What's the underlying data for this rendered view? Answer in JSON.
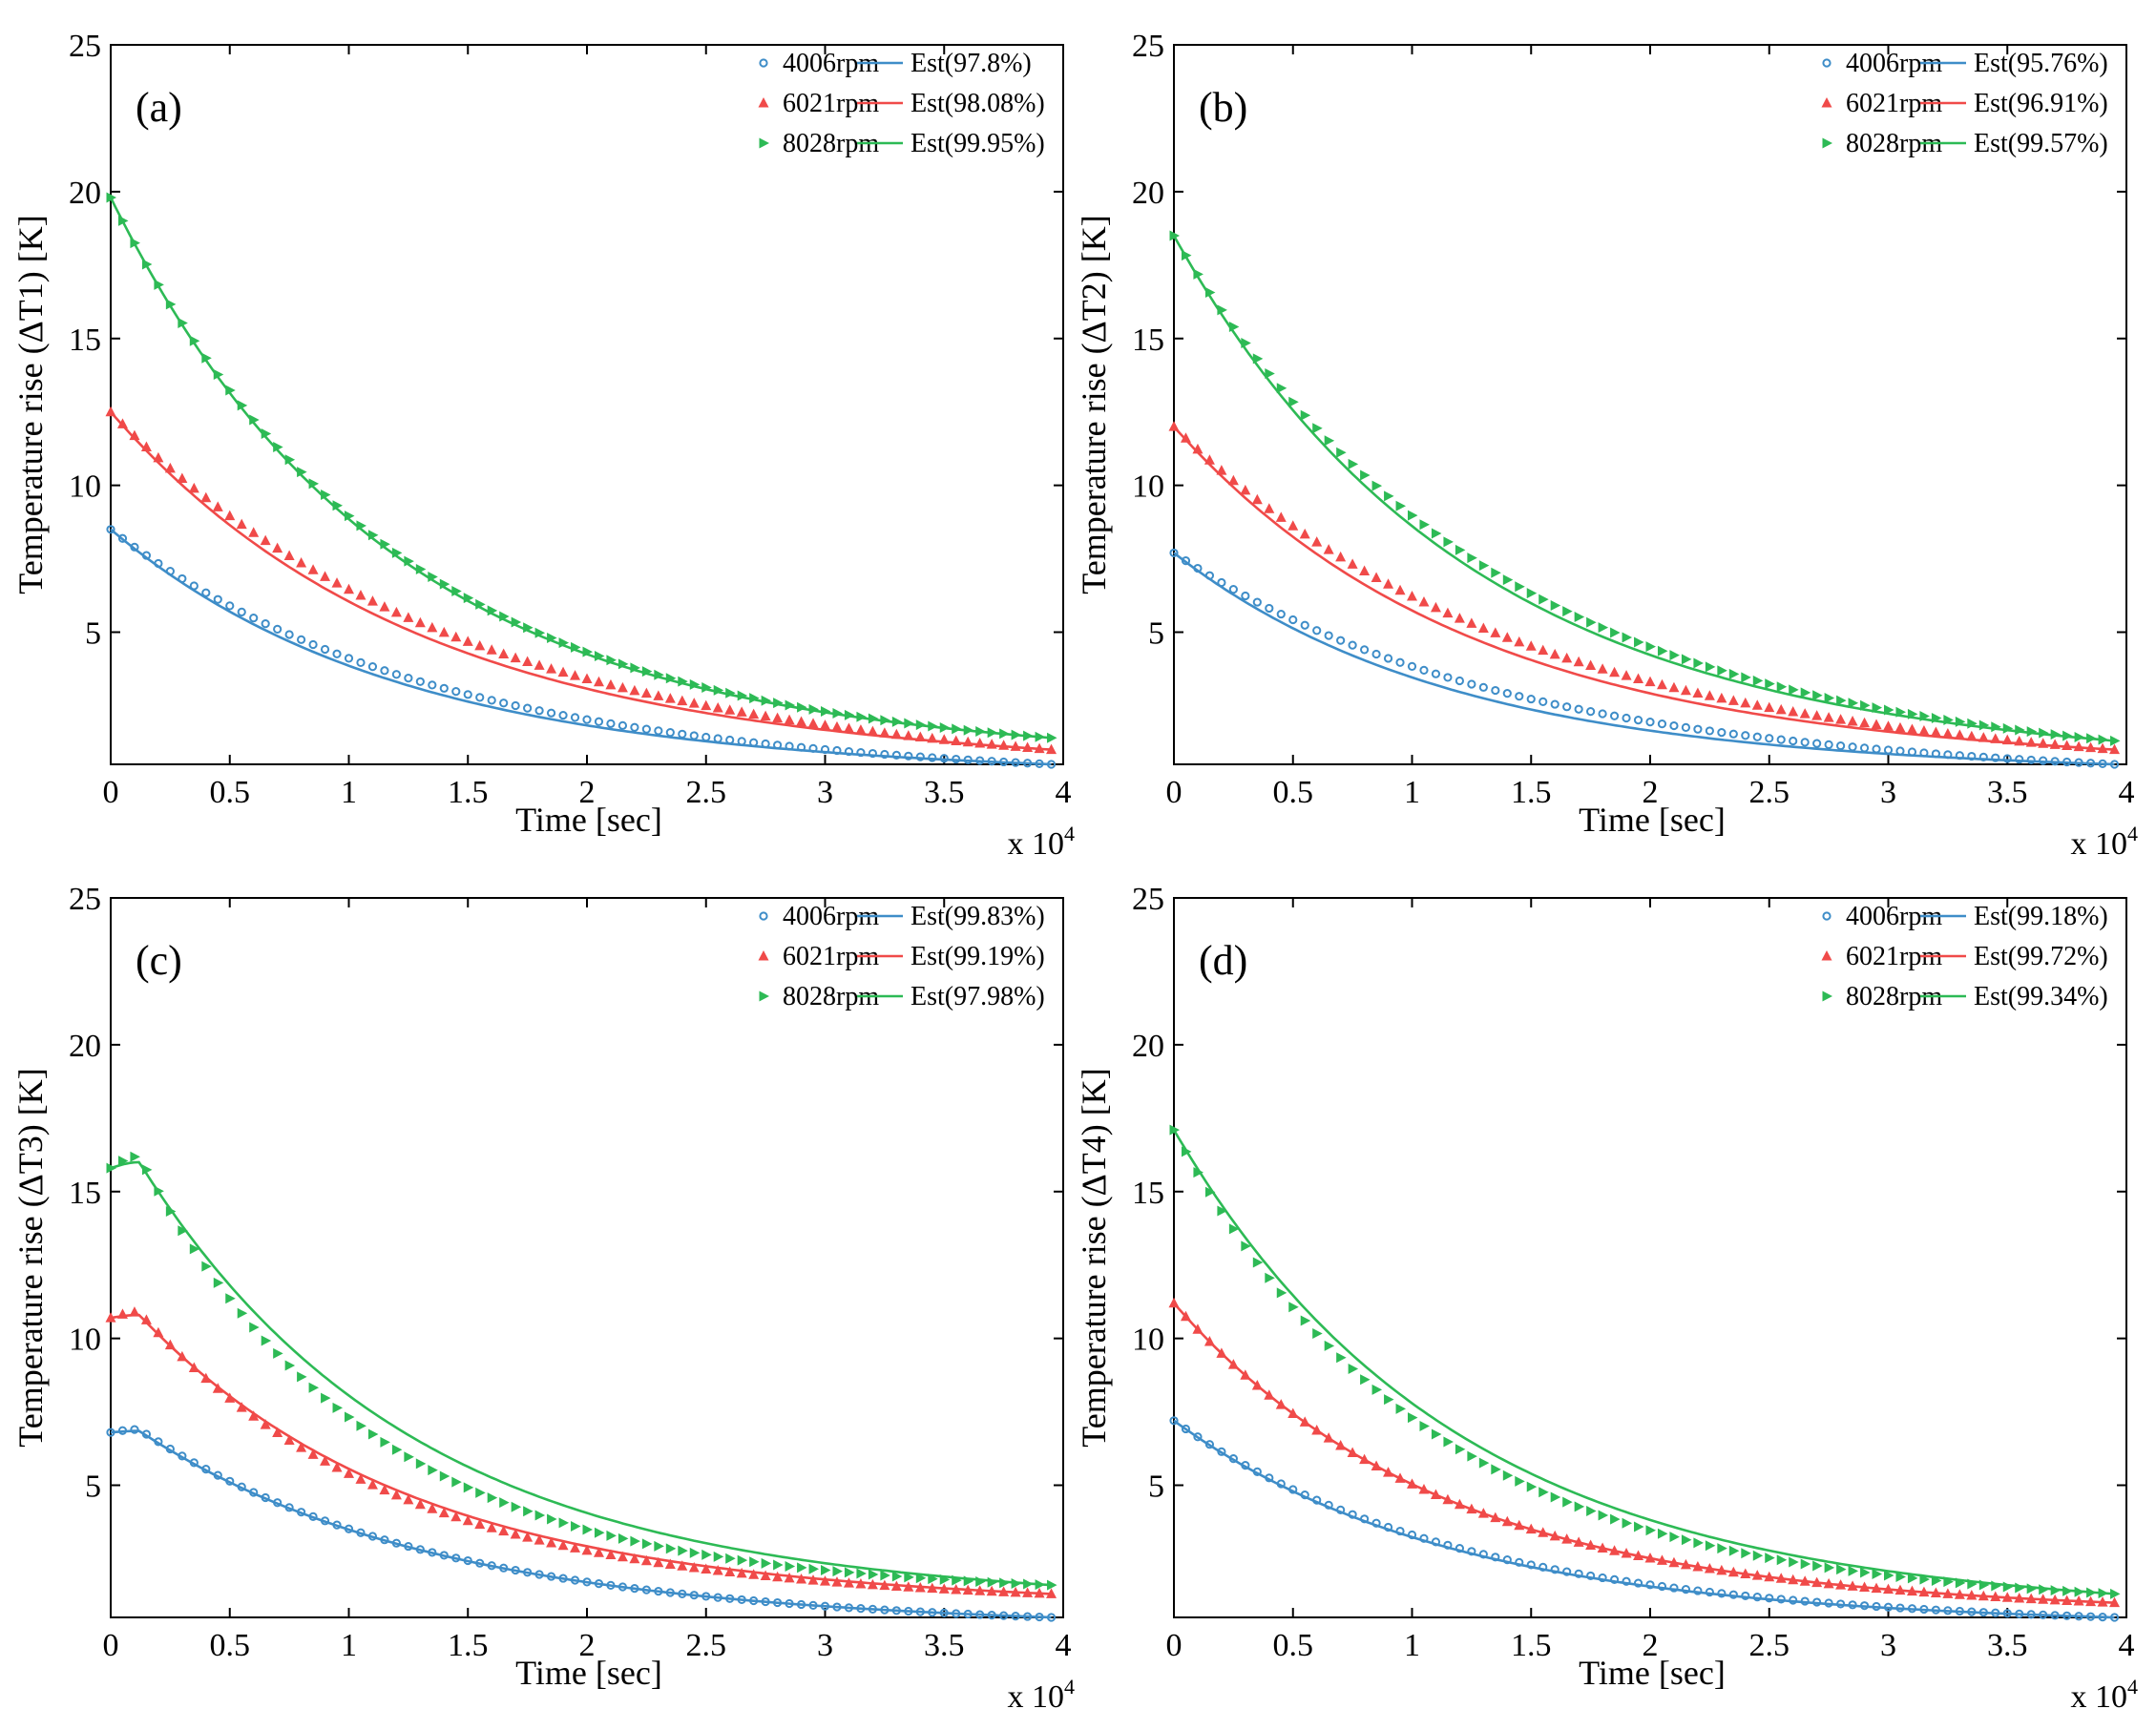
{
  "colors": {
    "s4006": "#3E8DC8",
    "s6021": "#F04A49",
    "s8028": "#2DBA55"
  },
  "chart_data": [
    {
      "type": "line",
      "panel_label": "(a)",
      "xlabel": "Time [sec]",
      "ylabel": "Temperature rise (ΔT1) [K]",
      "x_multiplier": "x 10",
      "x_multiplier_exp": "4",
      "xlim": [
        0,
        4
      ],
      "ylim": [
        0.5,
        25
      ],
      "xticks": [
        "0",
        "0.5",
        "1",
        "1.5",
        "2",
        "2.5",
        "3",
        "3.5",
        "4"
      ],
      "yticks": [
        "5",
        "10",
        "15",
        "20",
        "25"
      ],
      "series": [
        {
          "name": "4006rpm",
          "marker": "circle",
          "color_key": "s4006",
          "est_label": "Est(97.8%)",
          "marker_start": 8.5,
          "marker_tau": 1.3,
          "est_start": 8.5,
          "est_tau": 1.18,
          "end": 0.5
        },
        {
          "name": "6021rpm",
          "marker": "triangle-up",
          "color_key": "s6021",
          "est_label": "Est(98.08%)",
          "marker_start": 12.5,
          "marker_tau": 1.4,
          "est_start": 12.5,
          "est_tau": 1.25,
          "end": 1.0
        },
        {
          "name": "8028rpm",
          "marker": "triangle-right",
          "color_key": "s8028",
          "est_label": "Est(99.95%)",
          "marker_start": 19.8,
          "marker_tau": 1.15,
          "est_start": 19.8,
          "est_tau": 1.13,
          "end": 1.4
        }
      ]
    },
    {
      "type": "line",
      "panel_label": "(b)",
      "xlabel": "Time [sec]",
      "ylabel": "Temperature rise (ΔT2) [K]",
      "x_multiplier": "x 10",
      "x_multiplier_exp": "4",
      "xlim": [
        0,
        4
      ],
      "ylim": [
        0.5,
        25
      ],
      "xticks": [
        "0",
        "0.5",
        "1",
        "1.5",
        "2",
        "2.5",
        "3",
        "3.5",
        "4"
      ],
      "yticks": [
        "5",
        "10",
        "15",
        "20",
        "25"
      ],
      "series": [
        {
          "name": "4006rpm",
          "marker": "circle",
          "color_key": "s4006",
          "est_label": "Est(95.76%)",
          "marker_start": 7.7,
          "marker_tau": 1.35,
          "est_start": 7.7,
          "est_tau": 1.15,
          "end": 0.5
        },
        {
          "name": "6021rpm",
          "marker": "triangle-up",
          "color_key": "s6021",
          "est_label": "Est(96.91%)",
          "marker_start": 12.0,
          "marker_tau": 1.4,
          "est_start": 12.0,
          "est_tau": 1.22,
          "end": 1.0
        },
        {
          "name": "8028rpm",
          "marker": "triangle-right",
          "color_key": "s8028",
          "est_label": "Est(99.57%)",
          "marker_start": 18.5,
          "marker_tau": 1.28,
          "est_start": 18.5,
          "est_tau": 1.2,
          "end": 1.3
        }
      ]
    },
    {
      "type": "line",
      "panel_label": "(c)",
      "xlabel": "Time [sec]",
      "ylabel": "Temperature rise (ΔT3) [K]",
      "x_multiplier": "x 10",
      "x_multiplier_exp": "4",
      "xlim": [
        0,
        4
      ],
      "ylim": [
        0.5,
        25
      ],
      "xticks": [
        "0",
        "0.5",
        "1",
        "1.5",
        "2",
        "2.5",
        "3",
        "3.5",
        "4"
      ],
      "yticks": [
        "5",
        "10",
        "15",
        "20",
        "25"
      ],
      "series": [
        {
          "name": "4006rpm",
          "marker": "circle",
          "color_key": "s4006",
          "est_label": "Est(99.83%)",
          "marker_start": 6.8,
          "marker_peak": 6.9,
          "marker_tau": 1.2,
          "est_start": 6.8,
          "est_peak": 6.85,
          "est_tau": 1.2,
          "end": 0.5
        },
        {
          "name": "6021rpm",
          "marker": "triangle-up",
          "color_key": "s6021",
          "est_label": "Est(99.19%)",
          "marker_start": 10.7,
          "marker_peak": 10.9,
          "marker_tau": 1.05,
          "est_start": 10.7,
          "est_peak": 10.8,
          "est_tau": 1.12,
          "end": 1.3
        },
        {
          "name": "8028rpm",
          "marker": "triangle-right",
          "color_key": "s8028",
          "est_label": "Est(97.98%)",
          "marker_start": 15.8,
          "marker_peak": 16.2,
          "marker_tau": 0.95,
          "est_start": 15.8,
          "est_peak": 16.0,
          "est_tau": 1.12,
          "end": 1.6
        }
      ]
    },
    {
      "type": "line",
      "panel_label": "(d)",
      "xlabel": "Time [sec]",
      "ylabel": "Temperature rise (ΔT4) [K]",
      "x_multiplier": "x 10",
      "x_multiplier_exp": "4",
      "xlim": [
        0,
        4
      ],
      "ylim": [
        0.5,
        25
      ],
      "xticks": [
        "0",
        "0.5",
        "1",
        "1.5",
        "2",
        "2.5",
        "3",
        "3.5",
        "4"
      ],
      "yticks": [
        "5",
        "10",
        "15",
        "20",
        "25"
      ],
      "series": [
        {
          "name": "4006rpm",
          "marker": "circle",
          "color_key": "s4006",
          "est_label": "Est(99.18%)",
          "marker_start": 7.2,
          "marker_tau": 1.18,
          "est_start": 7.2,
          "est_tau": 1.14,
          "end": 0.5
        },
        {
          "name": "6021rpm",
          "marker": "triangle-up",
          "color_key": "s6021",
          "est_label": "Est(99.72%)",
          "marker_start": 11.2,
          "marker_tau": 1.1,
          "est_start": 11.2,
          "est_tau": 1.1,
          "end": 1.0
        },
        {
          "name": "8028rpm",
          "marker": "triangle-right",
          "color_key": "s8028",
          "est_label": "Est(99.34%)",
          "marker_start": 17.1,
          "marker_tau": 1.05,
          "est_start": 17.1,
          "est_tau": 1.15,
          "end": 1.3
        }
      ]
    }
  ]
}
